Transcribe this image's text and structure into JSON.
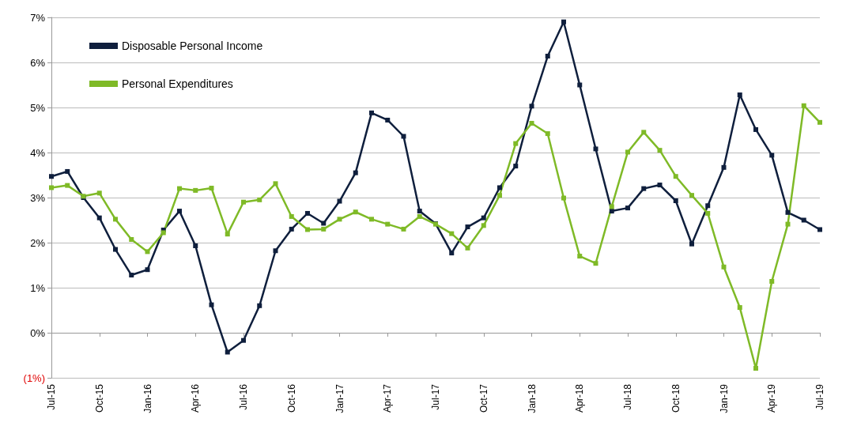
{
  "chart_data": {
    "type": "line",
    "categories": [
      "Jul-15",
      null,
      null,
      "Oct-15",
      null,
      null,
      "Jan-16",
      null,
      null,
      "Apr-16",
      null,
      null,
      "Jul-16",
      null,
      null,
      "Oct-16",
      null,
      null,
      "Jan-17",
      null,
      null,
      "Apr-17",
      null,
      null,
      "Jul-17",
      null,
      null,
      "Oct-17",
      null,
      null,
      "Jan-18",
      null,
      null,
      "Apr-18",
      null,
      null,
      "Jul-18",
      null,
      null,
      "Oct-18",
      null,
      null,
      "Jan-19",
      null,
      null,
      "Apr-19",
      null,
      null,
      "Jul-19"
    ],
    "series": [
      {
        "name": "Disposable Personal Income",
        "color": "#0f1f3d",
        "values": [
          3.47,
          3.58,
          3.0,
          2.55,
          1.85,
          1.28,
          1.4,
          2.28,
          2.7,
          1.93,
          0.62,
          -0.43,
          -0.17,
          0.6,
          1.82,
          2.3,
          2.65,
          2.43,
          2.92,
          3.55,
          4.88,
          4.72,
          4.36,
          2.7,
          2.42,
          1.77,
          2.35,
          2.55,
          3.22,
          3.7,
          5.03,
          6.14,
          6.9,
          5.5,
          4.08,
          2.7,
          2.77,
          3.2,
          3.28,
          2.93,
          1.97,
          2.82,
          3.67,
          5.28,
          4.51,
          3.94,
          2.67,
          2.5,
          2.29
        ]
      },
      {
        "name": "Personal Expenditures",
        "color": "#7fba27",
        "values": [
          3.22,
          3.27,
          3.03,
          3.1,
          2.52,
          2.07,
          1.8,
          2.22,
          3.2,
          3.16,
          3.21,
          2.19,
          2.9,
          2.95,
          3.31,
          2.58,
          2.29,
          2.3,
          2.52,
          2.68,
          2.52,
          2.41,
          2.3,
          2.58,
          2.41,
          2.2,
          1.88,
          2.38,
          3.05,
          4.2,
          4.65,
          4.42,
          2.99,
          1.7,
          1.54,
          2.8,
          4.01,
          4.45,
          4.05,
          3.47,
          3.05,
          2.65,
          1.46,
          0.56,
          -0.79,
          1.14,
          2.41,
          5.04,
          4.67
        ]
      }
    ],
    "ylim": [
      -1,
      7
    ],
    "yticks": [
      {
        "value": -1,
        "label": "(1%)"
      },
      {
        "value": 0,
        "label": "0%"
      },
      {
        "value": 1,
        "label": "1%"
      },
      {
        "value": 2,
        "label": "2%"
      },
      {
        "value": 3,
        "label": "3%"
      },
      {
        "value": 4,
        "label": "4%"
      },
      {
        "value": 5,
        "label": "5%"
      },
      {
        "value": 6,
        "label": "6%"
      },
      {
        "value": 7,
        "label": "7%"
      }
    ],
    "grid": "y",
    "legend": "top left",
    "marker": "square",
    "line_style": "solid"
  }
}
